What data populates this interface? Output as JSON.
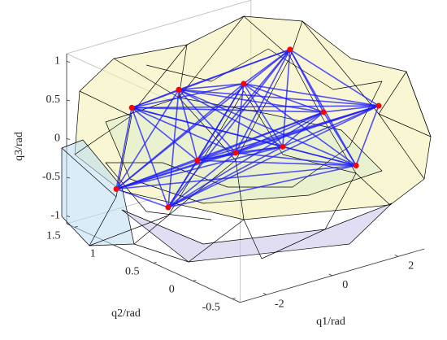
{
  "chart_data": {
    "type": "scatter3d",
    "xlabel": "q1/rad",
    "ylabel": "q2/rad",
    "zlabel": "q3/rad",
    "x": [
      2.55,
      -1.31,
      -1.78,
      2.37,
      2.13,
      -0.78,
      -2.18,
      1.13,
      -2.01,
      -2.11,
      2.16,
      1.62
    ],
    "y": [
      1.0,
      0.8,
      1.2,
      -0.2,
      0.4,
      0.3,
      0.2,
      0.5,
      1.3,
      0.6,
      0.0,
      1.2
    ],
    "z": [
      0.77,
      0.82,
      0.46,
      0.62,
      0.29,
      0.17,
      0.29,
      -0.08,
      -0.61,
      -0.51,
      -0.22,
      0.35
    ],
    "color": "#ff0000",
    "edge_color": "#1a1aff",
    "xlim": [
      -2.8,
      2.8
    ],
    "ylim": [
      -0.6,
      1.6
    ],
    "zlim": [
      -1.1,
      1.1
    ],
    "xticks": [
      -2,
      0,
      2
    ],
    "yticks": [
      -0.5,
      0,
      0.5,
      1,
      1.5
    ],
    "zticks": [
      -1,
      -0.5,
      0,
      0.5,
      1
    ]
  }
}
